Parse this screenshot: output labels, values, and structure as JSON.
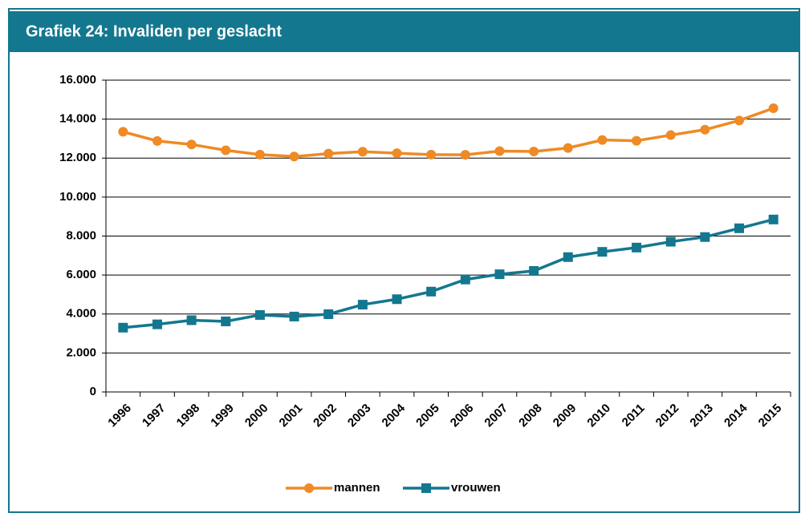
{
  "chart_data": {
    "type": "line",
    "title": "Grafiek 24: Invaliden per geslacht",
    "categories": [
      "1996",
      "1997",
      "1998",
      "1999",
      "2000",
      "2001",
      "2002",
      "2003",
      "2004",
      "2005",
      "2006",
      "2007",
      "2008",
      "2009",
      "2010",
      "2011",
      "2012",
      "2013",
      "2014",
      "2015"
    ],
    "series": [
      {
        "name": "mannen",
        "color": "#ef8a25",
        "marker": "circle",
        "values": [
          13350,
          12880,
          12700,
          12400,
          12180,
          12080,
          12230,
          12330,
          12250,
          12180,
          12170,
          12360,
          12340,
          12520,
          12930,
          12890,
          13180,
          13460,
          13930,
          14560
        ]
      },
      {
        "name": "vrouwen",
        "color": "#13778f",
        "marker": "square",
        "values": [
          3300,
          3470,
          3680,
          3620,
          3950,
          3870,
          3990,
          4480,
          4760,
          5150,
          5770,
          6040,
          6210,
          6920,
          7190,
          7410,
          7710,
          7950,
          8400,
          8850
        ]
      }
    ],
    "ylim": [
      0,
      16000
    ],
    "yticks": [
      0,
      {
        "value": 2000,
        "label": "2.000"
      },
      {
        "value": 4000,
        "label": "4.000"
      },
      {
        "value": 6000,
        "label": "6.000"
      },
      {
        "value": 8000,
        "label": "8.000"
      },
      {
        "value": 10000,
        "label": "10.000"
      },
      {
        "value": 12000,
        "label": "12.000"
      },
      {
        "value": 14000,
        "label": "14.000"
      },
      {
        "value": 16000,
        "label": "16.000"
      }
    ],
    "grid": true,
    "legend": "bottom"
  }
}
